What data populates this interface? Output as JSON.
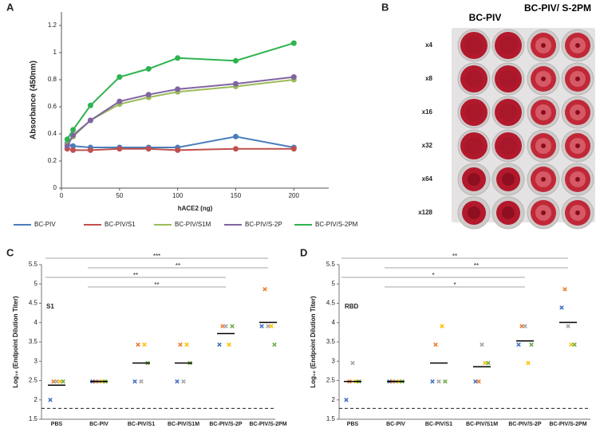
{
  "chart_data": [
    {
      "type": "line",
      "panel_label": "A",
      "xlabel": "hACE2 (ng)",
      "ylabel": "Absorbance (450nm)",
      "x": [
        5,
        10,
        25,
        50,
        75,
        100,
        150,
        200
      ],
      "series": [
        {
          "name": "BC-PIV",
          "color": "#4a7ebb",
          "values": [
            0.33,
            0.31,
            0.3,
            0.3,
            0.3,
            0.3,
            0.38,
            0.3
          ]
        },
        {
          "name": "BC-PIV/S1",
          "color": "#c0504d",
          "values": [
            0.29,
            0.28,
            0.28,
            0.29,
            0.29,
            0.28,
            0.29,
            0.29
          ]
        },
        {
          "name": "BC-PIV/S1M",
          "color": "#9bbb59",
          "values": [
            0.32,
            0.38,
            0.5,
            0.62,
            0.67,
            0.71,
            0.75,
            0.8
          ]
        },
        {
          "name": "BC-PIV/S-2P",
          "color": "#8064a2",
          "values": [
            0.31,
            0.39,
            0.5,
            0.64,
            0.69,
            0.73,
            0.77,
            0.82
          ]
        },
        {
          "name": "BC-PIV/S-2PM",
          "color": "#2eb34f",
          "values": [
            0.36,
            0.43,
            0.61,
            0.82,
            0.88,
            0.96,
            0.94,
            1.07
          ]
        }
      ],
      "xlim": [
        0,
        230
      ],
      "ylim": [
        0,
        1.3
      ],
      "xticks": [
        0,
        50,
        100,
        150,
        200
      ],
      "yticks": [
        0,
        0.2,
        0.4,
        0.6,
        0.8,
        1,
        1.2
      ]
    },
    {
      "type": "dot",
      "panel_label": "C",
      "label": "S1",
      "ylabel": "Log₁₀ (Endpoint Dilution Titer)",
      "categories": [
        "PBS",
        "BC-PIV",
        "BC-PIV/S1",
        "BC-PIV/S1M",
        "BC-PIV/S-2P",
        "BC-PIV/S-2PM"
      ],
      "series": [
        {
          "color": "#4472c4",
          "values": [
            2.0,
            2.477,
            2.477,
            2.477,
            3.431,
            3.908
          ]
        },
        {
          "color": "#ed7d31",
          "values": [
            2.477,
            2.477,
            3.431,
            3.431,
            3.908,
            4.863
          ]
        },
        {
          "color": "#a5a5a5",
          "values": [
            2.477,
            2.477,
            2.477,
            2.477,
            3.908,
            3.908
          ]
        },
        {
          "color": "#ffc000",
          "values": [
            2.477,
            2.477,
            3.431,
            3.431,
            3.431,
            3.908
          ]
        },
        {
          "color": "#70ad47",
          "values": [
            2.477,
            2.477,
            2.954,
            2.954,
            3.908,
            3.431
          ]
        }
      ],
      "means": [
        2.382,
        2.477,
        2.954,
        2.954,
        3.717,
        4.004
      ],
      "ylim": [
        1.5,
        5.5
      ],
      "yticks": [
        1.5,
        2,
        2.5,
        3,
        3.5,
        4,
        4.5,
        5,
        5.5
      ],
      "reference_line": 1.78,
      "significance": [
        {
          "from": "PBS",
          "to": "BC-PIV/S-2PM",
          "label": "***"
        },
        {
          "from": "BC-PIV",
          "to": "BC-PIV/S-2PM",
          "label": "**"
        },
        {
          "from": "PBS",
          "to": "BC-PIV/S-2P",
          "label": "**"
        },
        {
          "from": "BC-PIV",
          "to": "BC-PIV/S-2P",
          "label": "**"
        }
      ]
    },
    {
      "type": "dot",
      "panel_label": "D",
      "label": "RBD",
      "ylabel": "Log₁₀ (Endpoint Dilution Titer)",
      "categories": [
        "PBS",
        "BC-PIV",
        "BC-PIV/S1",
        "BC-PIV/S1M",
        "BC-PIV/S-2P",
        "BC-PIV/S-2PM"
      ],
      "series": [
        {
          "color": "#4472c4",
          "values": [
            2.0,
            2.477,
            2.477,
            2.477,
            3.431,
            4.386
          ]
        },
        {
          "color": "#ed7d31",
          "values": [
            2.477,
            2.477,
            3.431,
            2.477,
            3.908,
            4.863
          ]
        },
        {
          "color": "#a5a5a5",
          "values": [
            2.954,
            2.477,
            2.477,
            3.431,
            3.908,
            3.908
          ]
        },
        {
          "color": "#ffc000",
          "values": [
            2.477,
            2.477,
            3.908,
            2.954,
            2.954,
            3.431
          ]
        },
        {
          "color": "#70ad47",
          "values": [
            2.477,
            2.477,
            2.477,
            2.954,
            3.431,
            3.431
          ]
        }
      ],
      "means": [
        2.477,
        2.477,
        2.954,
        2.859,
        3.526,
        4.004
      ],
      "ylim": [
        1.5,
        5.5
      ],
      "yticks": [
        1.5,
        2,
        2.5,
        3,
        3.5,
        4,
        4.5,
        5,
        5.5
      ],
      "reference_line": 1.78,
      "significance": [
        {
          "from": "PBS",
          "to": "BC-PIV/S-2PM",
          "label": "**"
        },
        {
          "from": "BC-PIV",
          "to": "BC-PIV/S-2PM",
          "label": "**"
        },
        {
          "from": "PBS",
          "to": "BC-PIV/S-2P",
          "label": "*"
        },
        {
          "from": "BC-PIV",
          "to": "BC-PIV/S-2P",
          "label": "*"
        }
      ]
    }
  ],
  "plate": {
    "panel_label": "B",
    "column_headers": [
      "BC-PIV",
      "BC-PIV/ S-2PM"
    ],
    "row_labels": [
      "x4",
      "x8",
      "x16",
      "x32",
      "x64",
      "x128"
    ]
  }
}
